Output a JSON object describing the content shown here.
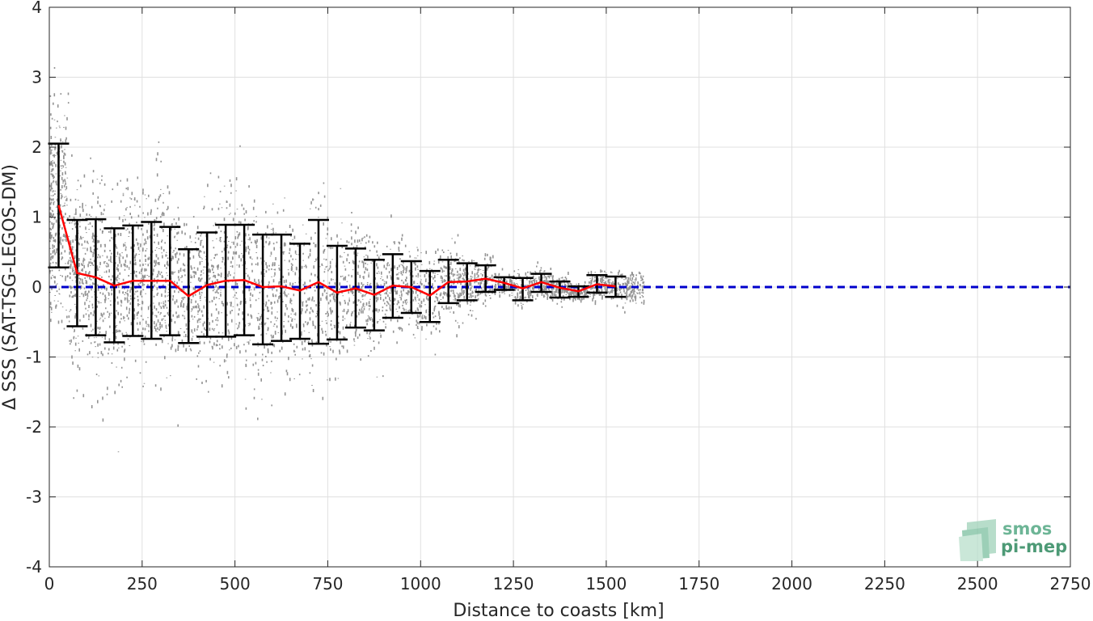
{
  "chart_data": {
    "type": "scatter",
    "title": "",
    "xlabel": "Distance to coasts [km]",
    "ylabel": "Δ SSS (SAT-TSG-LEGOS-DM)",
    "xlim": [
      0,
      2750
    ],
    "ylim": [
      -4,
      4
    ],
    "x_ticks": [
      0,
      250,
      500,
      750,
      1000,
      1250,
      1500,
      1750,
      2000,
      2250,
      2500,
      2750
    ],
    "y_ticks": [
      -4,
      -3,
      -2,
      -1,
      0,
      1,
      2,
      3,
      4
    ],
    "grid": true,
    "reference_line": {
      "y": 0,
      "style": "dashed",
      "color": "#0000cc"
    },
    "scatter_color": "#808080",
    "series": [
      {
        "type": "errorbar-line",
        "color": "#ff0000",
        "errorbar_color": "#000000",
        "x": [
          25,
          75,
          125,
          175,
          225,
          275,
          325,
          375,
          425,
          475,
          525,
          575,
          625,
          675,
          725,
          775,
          825,
          875,
          925,
          975,
          1025,
          1075,
          1125,
          1175,
          1225,
          1275,
          1325,
          1375,
          1425,
          1475,
          1525
        ],
        "mean": [
          1.17,
          0.2,
          0.14,
          0.02,
          0.09,
          0.09,
          0.09,
          -0.13,
          0.03,
          0.09,
          0.1,
          0.0,
          0.01,
          -0.05,
          0.07,
          -0.08,
          -0.02,
          -0.11,
          0.02,
          0.0,
          -0.12,
          0.07,
          0.08,
          0.12,
          0.06,
          -0.02,
          0.07,
          -0.01,
          -0.06,
          0.04,
          0.01
        ],
        "upper": [
          2.05,
          0.96,
          0.97,
          0.84,
          0.88,
          0.93,
          0.86,
          0.54,
          0.78,
          0.89,
          0.89,
          0.75,
          0.75,
          0.62,
          0.96,
          0.59,
          0.55,
          0.39,
          0.47,
          0.37,
          0.23,
          0.39,
          0.34,
          0.31,
          0.14,
          0.13,
          0.19,
          0.08,
          0.01,
          0.17,
          0.15
        ],
        "lower": [
          0.28,
          -0.56,
          -0.69,
          -0.79,
          -0.7,
          -0.74,
          -0.69,
          -0.8,
          -0.71,
          -0.71,
          -0.69,
          -0.82,
          -0.77,
          -0.74,
          -0.81,
          -0.75,
          -0.58,
          -0.62,
          -0.44,
          -0.37,
          -0.5,
          -0.23,
          -0.19,
          -0.07,
          -0.04,
          -0.19,
          -0.07,
          -0.15,
          -0.14,
          -0.08,
          -0.14
        ]
      }
    ]
  },
  "logo": {
    "line1": "smos",
    "line2": "pi-mep",
    "color1": "#6db596",
    "color2": "#4d9a76"
  }
}
